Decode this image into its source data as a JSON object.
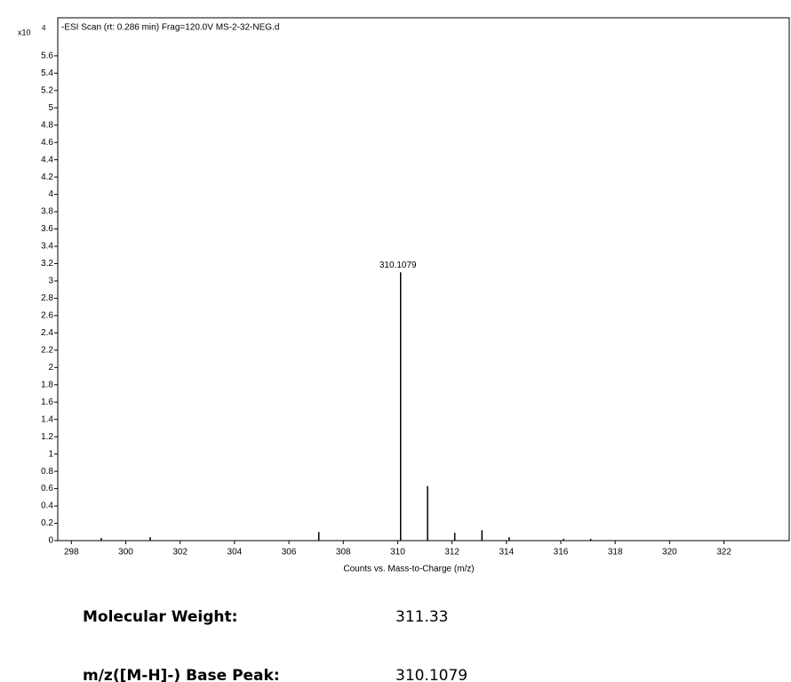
{
  "chart_data": {
    "type": "stem",
    "title": "-ESI Scan (rt: 0.286 min) Frag=120.0V MS-2-32-NEG.d",
    "x_label": "Counts vs. Mass-to-Charge (m/z)",
    "y_scale_label": "x10",
    "y_scale_exponent": "4",
    "color": "#000000",
    "x": [
      299.1,
      300.9,
      307.1,
      310.1079,
      311.1,
      312.1,
      313.1,
      314.1,
      316.1,
      317.1
    ],
    "values": [
      0.03,
      0.04,
      0.1,
      3.1,
      0.63,
      0.09,
      0.12,
      0.04,
      0.02,
      0.02
    ],
    "value_labels": [
      null,
      null,
      null,
      "310.1079",
      null,
      null,
      null,
      null,
      null,
      null
    ],
    "xlim": [
      297.5,
      324.4
    ],
    "xticks": [
      298,
      300,
      302,
      304,
      306,
      308,
      310,
      312,
      314,
      316,
      318,
      320,
      322
    ],
    "ylim": [
      0,
      6.04
    ],
    "yticks": [
      0,
      0.2,
      0.4,
      0.6,
      0.8,
      1,
      1.2,
      1.4,
      1.6,
      1.8,
      2,
      2.2,
      2.4,
      2.6,
      2.8,
      3,
      3.2,
      3.4,
      3.6,
      3.8,
      4,
      4.2,
      4.4,
      4.6,
      4.8,
      5,
      5.2,
      5.4,
      5.6
    ]
  },
  "info": [
    {
      "label": "Molecular Weight:",
      "value": "311.33"
    },
    {
      "label": "m/z([M-H]-) Base Peak:",
      "value": "310.1079"
    }
  ]
}
